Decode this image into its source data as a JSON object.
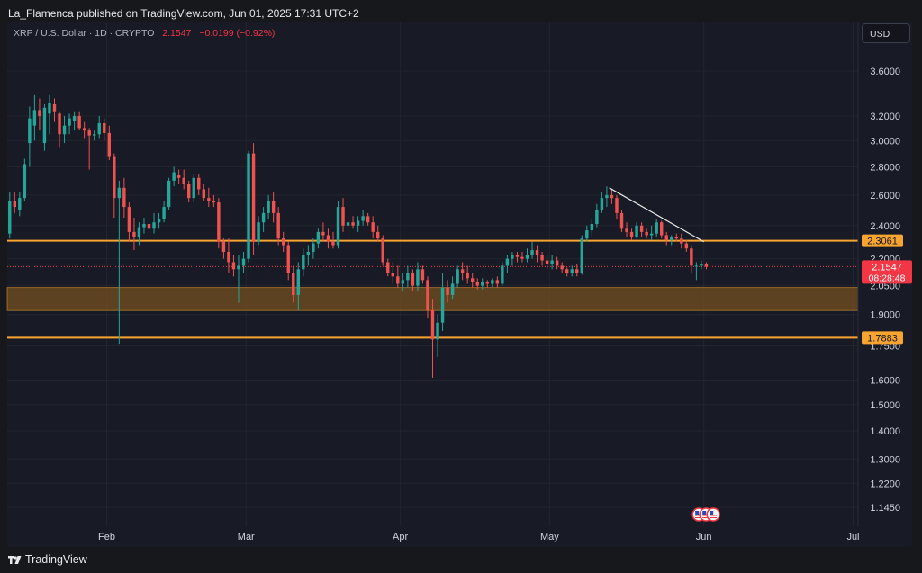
{
  "header": {
    "published": "La_Flamenca published on TradingView.com, Jun 01, 2025 17:31 UTC+2"
  },
  "symbol": {
    "title": "XRP / U.S. Dollar · 1D · CRYPTO",
    "price": "2.1547",
    "change": "−0.0199 (−0.92%)"
  },
  "currency_button": "USD",
  "footer": {
    "brand": "TradingView"
  },
  "colors": {
    "up": "#26a69a",
    "down": "#ef5350",
    "level": "#f7a430",
    "zone": "#6b4c20",
    "price_label": "#f23645",
    "trendline": "#e6e6e6"
  },
  "chart_data": {
    "type": "candlestick",
    "title": "XRP / U.S. Dollar · 1D · CRYPTO",
    "scale": "log",
    "ylim": [
      1.09,
      4.1
    ],
    "y_ticks": [
      "3.6000",
      "3.2000",
      "3.0000",
      "2.8000",
      "2.6000",
      "2.4000",
      "2.2000",
      "2.0500",
      "1.9000",
      "1.7500",
      "1.6000",
      "1.5000",
      "1.4000",
      "1.3000",
      "1.2200",
      "1.1450"
    ],
    "x_ticks": [
      {
        "label": "Feb",
        "date": "2025-02-01"
      },
      {
        "label": "Mar",
        "date": "2025-03-01"
      },
      {
        "label": "Apr",
        "date": "2025-04-01"
      },
      {
        "label": "May",
        "date": "2025-05-01"
      },
      {
        "label": "Jun",
        "date": "2025-06-01"
      },
      {
        "label": "Jul",
        "date": "2025-07-01"
      }
    ],
    "xlim": [
      "2025-01-12",
      "2025-07-02"
    ],
    "grid": true,
    "horizontal_levels": [
      {
        "value": 2.3061,
        "label": "2.3061"
      },
      {
        "value": 1.7883,
        "label": "1.7883"
      }
    ],
    "zone": {
      "low": 1.92,
      "high": 2.04
    },
    "trendline": {
      "start": {
        "date": "2025-05-13",
        "value": 2.65
      },
      "end": {
        "date": "2025-06-01",
        "value": 2.3
      }
    },
    "last_price": {
      "value": 2.1547,
      "label": "2.1547",
      "countdown": "08:28:48"
    },
    "candles": [
      {
        "d": "2025-01-12",
        "o": 2.35,
        "h": 2.62,
        "l": 2.32,
        "c": 2.56
      },
      {
        "d": "2025-01-13",
        "o": 2.56,
        "h": 2.62,
        "l": 2.48,
        "c": 2.52
      },
      {
        "d": "2025-01-14",
        "o": 2.5,
        "h": 2.62,
        "l": 2.46,
        "c": 2.58
      },
      {
        "d": "2025-01-15",
        "o": 2.58,
        "h": 2.86,
        "l": 2.56,
        "c": 2.82
      },
      {
        "d": "2025-01-16",
        "o": 2.98,
        "h": 3.28,
        "l": 2.8,
        "c": 3.18
      },
      {
        "d": "2025-01-17",
        "o": 3.12,
        "h": 3.38,
        "l": 3.0,
        "c": 3.25
      },
      {
        "d": "2025-01-18",
        "o": 3.25,
        "h": 3.35,
        "l": 3.08,
        "c": 3.2
      },
      {
        "d": "2025-01-19",
        "o": 2.98,
        "h": 3.3,
        "l": 2.92,
        "c": 3.27
      },
      {
        "d": "2025-01-20",
        "o": 3.22,
        "h": 3.38,
        "l": 3.05,
        "c": 3.31
      },
      {
        "d": "2025-01-21",
        "o": 3.3,
        "h": 3.35,
        "l": 3.15,
        "c": 3.24
      },
      {
        "d": "2025-01-22",
        "o": 3.22,
        "h": 3.24,
        "l": 2.95,
        "c": 3.05
      },
      {
        "d": "2025-01-23",
        "o": 3.05,
        "h": 3.2,
        "l": 2.98,
        "c": 3.12
      },
      {
        "d": "2025-01-24",
        "o": 3.12,
        "h": 3.22,
        "l": 3.05,
        "c": 3.18
      },
      {
        "d": "2025-01-25",
        "o": 3.16,
        "h": 3.24,
        "l": 3.08,
        "c": 3.2
      },
      {
        "d": "2025-01-26",
        "o": 3.2,
        "h": 3.24,
        "l": 3.08,
        "c": 3.1
      },
      {
        "d": "2025-01-27",
        "o": 3.1,
        "h": 3.15,
        "l": 3.02,
        "c": 3.08
      },
      {
        "d": "2025-01-28",
        "o": 3.08,
        "h": 3.1,
        "l": 2.78,
        "c": 3.04
      },
      {
        "d": "2025-01-29",
        "o": 3.04,
        "h": 3.08,
        "l": 3.0,
        "c": 3.05
      },
      {
        "d": "2025-01-30",
        "o": 3.05,
        "h": 3.2,
        "l": 3.02,
        "c": 3.14
      },
      {
        "d": "2025-01-31",
        "o": 3.14,
        "h": 3.18,
        "l": 3.0,
        "c": 3.06
      },
      {
        "d": "2025-02-01",
        "o": 3.06,
        "h": 3.12,
        "l": 2.85,
        "c": 2.88
      },
      {
        "d": "2025-02-02",
        "o": 2.88,
        "h": 2.9,
        "l": 2.45,
        "c": 2.58
      },
      {
        "d": "2025-02-03",
        "o": 2.58,
        "h": 2.7,
        "l": 1.76,
        "c": 2.65
      },
      {
        "d": "2025-02-04",
        "o": 2.65,
        "h": 2.72,
        "l": 2.45,
        "c": 2.52
      },
      {
        "d": "2025-02-05",
        "o": 2.52,
        "h": 2.55,
        "l": 2.3,
        "c": 2.36
      },
      {
        "d": "2025-02-06",
        "o": 2.36,
        "h": 2.45,
        "l": 2.25,
        "c": 2.33
      },
      {
        "d": "2025-02-07",
        "o": 2.33,
        "h": 2.42,
        "l": 2.28,
        "c": 2.39
      },
      {
        "d": "2025-02-08",
        "o": 2.39,
        "h": 2.45,
        "l": 2.35,
        "c": 2.41
      },
      {
        "d": "2025-02-09",
        "o": 2.41,
        "h": 2.44,
        "l": 2.34,
        "c": 2.38
      },
      {
        "d": "2025-02-10",
        "o": 2.38,
        "h": 2.48,
        "l": 2.35,
        "c": 2.42
      },
      {
        "d": "2025-02-11",
        "o": 2.42,
        "h": 2.48,
        "l": 2.38,
        "c": 2.44
      },
      {
        "d": "2025-02-12",
        "o": 2.44,
        "h": 2.56,
        "l": 2.42,
        "c": 2.52
      },
      {
        "d": "2025-02-13",
        "o": 2.52,
        "h": 2.72,
        "l": 2.5,
        "c": 2.7
      },
      {
        "d": "2025-02-14",
        "o": 2.7,
        "h": 2.8,
        "l": 2.66,
        "c": 2.76
      },
      {
        "d": "2025-02-15",
        "o": 2.74,
        "h": 2.78,
        "l": 2.68,
        "c": 2.72
      },
      {
        "d": "2025-02-16",
        "o": 2.72,
        "h": 2.78,
        "l": 2.64,
        "c": 2.68
      },
      {
        "d": "2025-02-17",
        "o": 2.68,
        "h": 2.7,
        "l": 2.55,
        "c": 2.58
      },
      {
        "d": "2025-02-18",
        "o": 2.58,
        "h": 2.75,
        "l": 2.55,
        "c": 2.72
      },
      {
        "d": "2025-02-19",
        "o": 2.72,
        "h": 2.75,
        "l": 2.6,
        "c": 2.64
      },
      {
        "d": "2025-02-20",
        "o": 2.64,
        "h": 2.68,
        "l": 2.56,
        "c": 2.58
      },
      {
        "d": "2025-02-21",
        "o": 2.58,
        "h": 2.65,
        "l": 2.52,
        "c": 2.56
      },
      {
        "d": "2025-02-22",
        "o": 2.56,
        "h": 2.6,
        "l": 2.52,
        "c": 2.55
      },
      {
        "d": "2025-02-23",
        "o": 2.55,
        "h": 2.58,
        "l": 2.26,
        "c": 2.3
      },
      {
        "d": "2025-02-24",
        "o": 2.3,
        "h": 2.32,
        "l": 2.2,
        "c": 2.24
      },
      {
        "d": "2025-02-25",
        "o": 2.24,
        "h": 2.32,
        "l": 2.12,
        "c": 2.18
      },
      {
        "d": "2025-02-26",
        "o": 2.18,
        "h": 2.22,
        "l": 2.1,
        "c": 2.14
      },
      {
        "d": "2025-02-27",
        "o": 2.14,
        "h": 2.22,
        "l": 1.96,
        "c": 2.16
      },
      {
        "d": "2025-02-28",
        "o": 2.16,
        "h": 2.24,
        "l": 2.12,
        "c": 2.2
      },
      {
        "d": "2025-03-01",
        "o": 2.2,
        "h": 2.92,
        "l": 2.18,
        "c": 2.9
      },
      {
        "d": "2025-03-02",
        "o": 2.9,
        "h": 2.98,
        "l": 2.22,
        "c": 2.3
      },
      {
        "d": "2025-03-03",
        "o": 2.3,
        "h": 2.46,
        "l": 2.28,
        "c": 2.42
      },
      {
        "d": "2025-03-04",
        "o": 2.42,
        "h": 2.52,
        "l": 2.36,
        "c": 2.48
      },
      {
        "d": "2025-03-05",
        "o": 2.48,
        "h": 2.6,
        "l": 2.44,
        "c": 2.56
      },
      {
        "d": "2025-03-06",
        "o": 2.56,
        "h": 2.62,
        "l": 2.42,
        "c": 2.48
      },
      {
        "d": "2025-03-07",
        "o": 2.48,
        "h": 2.52,
        "l": 2.28,
        "c": 2.32
      },
      {
        "d": "2025-03-08",
        "o": 2.32,
        "h": 2.36,
        "l": 2.24,
        "c": 2.28
      },
      {
        "d": "2025-03-09",
        "o": 2.28,
        "h": 2.3,
        "l": 2.08,
        "c": 2.12
      },
      {
        "d": "2025-03-10",
        "o": 2.12,
        "h": 2.16,
        "l": 1.96,
        "c": 2.0
      },
      {
        "d": "2025-03-11",
        "o": 2.0,
        "h": 2.18,
        "l": 1.92,
        "c": 2.14
      },
      {
        "d": "2025-03-12",
        "o": 2.14,
        "h": 2.26,
        "l": 2.1,
        "c": 2.22
      },
      {
        "d": "2025-03-13",
        "o": 2.22,
        "h": 2.28,
        "l": 2.16,
        "c": 2.24
      },
      {
        "d": "2025-03-14",
        "o": 2.24,
        "h": 2.32,
        "l": 2.2,
        "c": 2.29
      },
      {
        "d": "2025-03-15",
        "o": 2.29,
        "h": 2.38,
        "l": 2.26,
        "c": 2.36
      },
      {
        "d": "2025-03-16",
        "o": 2.36,
        "h": 2.42,
        "l": 2.3,
        "c": 2.34
      },
      {
        "d": "2025-03-17",
        "o": 2.34,
        "h": 2.38,
        "l": 2.26,
        "c": 2.3
      },
      {
        "d": "2025-03-18",
        "o": 2.3,
        "h": 2.36,
        "l": 2.26,
        "c": 2.28
      },
      {
        "d": "2025-03-19",
        "o": 2.28,
        "h": 2.56,
        "l": 2.26,
        "c": 2.52
      },
      {
        "d": "2025-03-20",
        "o": 2.52,
        "h": 2.58,
        "l": 2.36,
        "c": 2.4
      },
      {
        "d": "2025-03-21",
        "o": 2.4,
        "h": 2.46,
        "l": 2.32,
        "c": 2.42
      },
      {
        "d": "2025-03-22",
        "o": 2.42,
        "h": 2.46,
        "l": 2.38,
        "c": 2.4
      },
      {
        "d": "2025-03-23",
        "o": 2.4,
        "h": 2.46,
        "l": 2.36,
        "c": 2.43
      },
      {
        "d": "2025-03-24",
        "o": 2.43,
        "h": 2.5,
        "l": 2.4,
        "c": 2.46
      },
      {
        "d": "2025-03-25",
        "o": 2.46,
        "h": 2.48,
        "l": 2.4,
        "c": 2.42
      },
      {
        "d": "2025-03-26",
        "o": 2.42,
        "h": 2.46,
        "l": 2.32,
        "c": 2.36
      },
      {
        "d": "2025-03-27",
        "o": 2.36,
        "h": 2.4,
        "l": 2.3,
        "c": 2.32
      },
      {
        "d": "2025-03-28",
        "o": 2.32,
        "h": 2.34,
        "l": 2.16,
        "c": 2.18
      },
      {
        "d": "2025-03-29",
        "o": 2.18,
        "h": 2.2,
        "l": 2.1,
        "c": 2.12
      },
      {
        "d": "2025-03-30",
        "o": 2.12,
        "h": 2.18,
        "l": 2.06,
        "c": 2.1
      },
      {
        "d": "2025-03-31",
        "o": 2.1,
        "h": 2.16,
        "l": 2.04,
        "c": 2.06
      },
      {
        "d": "2025-04-01",
        "o": 2.06,
        "h": 2.12,
        "l": 2.02,
        "c": 2.08
      },
      {
        "d": "2025-04-02",
        "o": 2.08,
        "h": 2.16,
        "l": 2.04,
        "c": 2.12
      },
      {
        "d": "2025-04-03",
        "o": 2.12,
        "h": 2.14,
        "l": 2.02,
        "c": 2.05
      },
      {
        "d": "2025-04-04",
        "o": 2.05,
        "h": 2.18,
        "l": 2.02,
        "c": 2.14
      },
      {
        "d": "2025-04-05",
        "o": 2.14,
        "h": 2.16,
        "l": 2.06,
        "c": 2.08
      },
      {
        "d": "2025-04-06",
        "o": 2.08,
        "h": 2.1,
        "l": 1.88,
        "c": 1.92
      },
      {
        "d": "2025-04-07",
        "o": 1.92,
        "h": 1.98,
        "l": 1.61,
        "c": 1.78
      },
      {
        "d": "2025-04-08",
        "o": 1.78,
        "h": 1.9,
        "l": 1.7,
        "c": 1.86
      },
      {
        "d": "2025-04-09",
        "o": 1.86,
        "h": 2.12,
        "l": 1.82,
        "c": 2.04
      },
      {
        "d": "2025-04-10",
        "o": 2.04,
        "h": 2.08,
        "l": 1.96,
        "c": 2.0
      },
      {
        "d": "2025-04-11",
        "o": 2.0,
        "h": 2.1,
        "l": 1.98,
        "c": 2.06
      },
      {
        "d": "2025-04-12",
        "o": 2.06,
        "h": 2.16,
        "l": 2.04,
        "c": 2.14
      },
      {
        "d": "2025-04-13",
        "o": 2.14,
        "h": 2.18,
        "l": 2.08,
        "c": 2.12
      },
      {
        "d": "2025-04-14",
        "o": 2.12,
        "h": 2.16,
        "l": 2.06,
        "c": 2.09
      },
      {
        "d": "2025-04-15",
        "o": 2.09,
        "h": 2.12,
        "l": 2.04,
        "c": 2.07
      },
      {
        "d": "2025-04-16",
        "o": 2.07,
        "h": 2.09,
        "l": 2.03,
        "c": 2.05
      },
      {
        "d": "2025-04-17",
        "o": 2.05,
        "h": 2.09,
        "l": 2.03,
        "c": 2.07
      },
      {
        "d": "2025-04-18",
        "o": 2.07,
        "h": 2.08,
        "l": 2.04,
        "c": 2.06
      },
      {
        "d": "2025-04-19",
        "o": 2.06,
        "h": 2.09,
        "l": 2.04,
        "c": 2.08
      },
      {
        "d": "2025-04-20",
        "o": 2.08,
        "h": 2.1,
        "l": 2.04,
        "c": 2.06
      },
      {
        "d": "2025-04-21",
        "o": 2.06,
        "h": 2.18,
        "l": 2.05,
        "c": 2.16
      },
      {
        "d": "2025-04-22",
        "o": 2.16,
        "h": 2.22,
        "l": 2.12,
        "c": 2.2
      },
      {
        "d": "2025-04-23",
        "o": 2.2,
        "h": 2.24,
        "l": 2.16,
        "c": 2.22
      },
      {
        "d": "2025-04-24",
        "o": 2.22,
        "h": 2.24,
        "l": 2.18,
        "c": 2.21
      },
      {
        "d": "2025-04-25",
        "o": 2.21,
        "h": 2.24,
        "l": 2.18,
        "c": 2.2
      },
      {
        "d": "2025-04-26",
        "o": 2.2,
        "h": 2.26,
        "l": 2.18,
        "c": 2.22
      },
      {
        "d": "2025-04-27",
        "o": 2.22,
        "h": 2.3,
        "l": 2.2,
        "c": 2.25
      },
      {
        "d": "2025-04-28",
        "o": 2.25,
        "h": 2.28,
        "l": 2.18,
        "c": 2.22
      },
      {
        "d": "2025-04-29",
        "o": 2.22,
        "h": 2.24,
        "l": 2.16,
        "c": 2.19
      },
      {
        "d": "2025-04-30",
        "o": 2.19,
        "h": 2.22,
        "l": 2.14,
        "c": 2.17
      },
      {
        "d": "2025-05-01",
        "o": 2.17,
        "h": 2.22,
        "l": 2.14,
        "c": 2.19
      },
      {
        "d": "2025-05-02",
        "o": 2.19,
        "h": 2.21,
        "l": 2.14,
        "c": 2.16
      },
      {
        "d": "2025-05-03",
        "o": 2.16,
        "h": 2.18,
        "l": 2.12,
        "c": 2.14
      },
      {
        "d": "2025-05-04",
        "o": 2.14,
        "h": 2.15,
        "l": 2.1,
        "c": 2.12
      },
      {
        "d": "2025-05-05",
        "o": 2.12,
        "h": 2.16,
        "l": 2.1,
        "c": 2.14
      },
      {
        "d": "2025-05-06",
        "o": 2.14,
        "h": 2.17,
        "l": 2.1,
        "c": 2.12
      },
      {
        "d": "2025-05-07",
        "o": 2.12,
        "h": 2.34,
        "l": 2.11,
        "c": 2.32
      },
      {
        "d": "2025-05-08",
        "o": 2.32,
        "h": 2.4,
        "l": 2.3,
        "c": 2.37
      },
      {
        "d": "2025-05-09",
        "o": 2.37,
        "h": 2.44,
        "l": 2.33,
        "c": 2.41
      },
      {
        "d": "2025-05-10",
        "o": 2.41,
        "h": 2.54,
        "l": 2.39,
        "c": 2.5
      },
      {
        "d": "2025-05-11",
        "o": 2.5,
        "h": 2.62,
        "l": 2.48,
        "c": 2.58
      },
      {
        "d": "2025-05-12",
        "o": 2.58,
        "h": 2.66,
        "l": 2.52,
        "c": 2.6
      },
      {
        "d": "2025-05-13",
        "o": 2.6,
        "h": 2.64,
        "l": 2.54,
        "c": 2.58
      },
      {
        "d": "2025-05-14",
        "o": 2.58,
        "h": 2.6,
        "l": 2.44,
        "c": 2.48
      },
      {
        "d": "2025-05-15",
        "o": 2.48,
        "h": 2.5,
        "l": 2.36,
        "c": 2.38
      },
      {
        "d": "2025-05-16",
        "o": 2.38,
        "h": 2.42,
        "l": 2.33,
        "c": 2.36
      },
      {
        "d": "2025-05-17",
        "o": 2.36,
        "h": 2.38,
        "l": 2.31,
        "c": 2.33
      },
      {
        "d": "2025-05-18",
        "o": 2.33,
        "h": 2.42,
        "l": 2.32,
        "c": 2.4
      },
      {
        "d": "2025-05-19",
        "o": 2.4,
        "h": 2.42,
        "l": 2.33,
        "c": 2.36
      },
      {
        "d": "2025-05-20",
        "o": 2.36,
        "h": 2.38,
        "l": 2.32,
        "c": 2.34
      },
      {
        "d": "2025-05-21",
        "o": 2.34,
        "h": 2.4,
        "l": 2.31,
        "c": 2.35
      },
      {
        "d": "2025-05-22",
        "o": 2.35,
        "h": 2.44,
        "l": 2.33,
        "c": 2.42
      },
      {
        "d": "2025-05-23",
        "o": 2.42,
        "h": 2.43,
        "l": 2.32,
        "c": 2.34
      },
      {
        "d": "2025-05-24",
        "o": 2.34,
        "h": 2.36,
        "l": 2.28,
        "c": 2.31
      },
      {
        "d": "2025-05-25",
        "o": 2.31,
        "h": 2.34,
        "l": 2.28,
        "c": 2.33
      },
      {
        "d": "2025-05-26",
        "o": 2.33,
        "h": 2.35,
        "l": 2.3,
        "c": 2.32
      },
      {
        "d": "2025-05-27",
        "o": 2.32,
        "h": 2.35,
        "l": 2.26,
        "c": 2.29
      },
      {
        "d": "2025-05-28",
        "o": 2.29,
        "h": 2.31,
        "l": 2.24,
        "c": 2.26
      },
      {
        "d": "2025-05-29",
        "o": 2.26,
        "h": 2.28,
        "l": 2.12,
        "c": 2.16
      },
      {
        "d": "2025-05-30",
        "o": 2.16,
        "h": 2.18,
        "l": 2.08,
        "c": 2.16
      },
      {
        "d": "2025-05-31",
        "o": 2.16,
        "h": 2.19,
        "l": 2.14,
        "c": 2.17
      },
      {
        "d": "2025-06-01",
        "o": 2.17,
        "h": 2.18,
        "l": 2.14,
        "c": 2.1547
      }
    ]
  }
}
